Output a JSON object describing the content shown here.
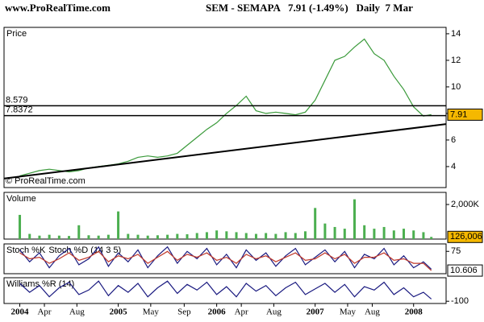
{
  "chart_data": [
    {
      "type": "line",
      "source": "www.ProRealTime.com",
      "title": "SEM - SEMAPA   7.91 (-1.49%)   Daily  7 Mar",
      "panel_title": "Price",
      "watermark": "© ProRealTime.com",
      "x": [
        2004.0,
        2004.1,
        2004.2,
        2004.3,
        2004.4,
        2004.5,
        2004.6,
        2004.7,
        2004.8,
        2004.9,
        2005.0,
        2005.1,
        2005.2,
        2005.3,
        2005.4,
        2005.5,
        2005.6,
        2005.7,
        2005.8,
        2005.9,
        2006.0,
        2006.1,
        2006.2,
        2006.3,
        2006.4,
        2006.5,
        2006.6,
        2006.7,
        2006.8,
        2006.9,
        2007.0,
        2007.1,
        2007.2,
        2007.3,
        2007.4,
        2007.5,
        2007.6,
        2007.7,
        2007.8,
        2007.9,
        2008.0,
        2008.1,
        2008.18
      ],
      "series": [
        {
          "color": "#3a9a3a",
          "values": [
            3.3,
            3.5,
            3.7,
            3.8,
            3.7,
            3.6,
            3.7,
            3.9,
            4.0,
            4.1,
            4.2,
            4.4,
            4.7,
            4.8,
            4.7,
            4.8,
            5.0,
            5.6,
            6.2,
            6.8,
            7.3,
            8.0,
            8.6,
            9.3,
            8.2,
            8.0,
            8.1,
            8.0,
            7.9,
            8.1,
            9.0,
            10.5,
            12.0,
            12.3,
            13.0,
            13.6,
            12.5,
            12.0,
            10.8,
            9.8,
            8.5,
            7.8,
            7.91
          ]
        }
      ],
      "xlim": [
        2003.84,
        2008.33
      ],
      "ylim": [
        2.42,
        14.48
      ],
      "yticks": [
        4,
        6,
        8,
        10,
        12,
        14
      ],
      "hlines": [
        {
          "value": 8.579,
          "label": "8.579"
        },
        {
          "value": 7.8372,
          "label": "7.8372"
        }
      ],
      "trendline": {
        "x": [
          2003.84,
          2008.33
        ],
        "values": [
          3.1,
          7.2
        ]
      },
      "last_value": 7.91,
      "last_color": "#f5b800"
    },
    {
      "type": "bar",
      "panel_title": "Volume",
      "title_color": "#c0392b",
      "x": [
        2004.0,
        2004.1,
        2004.2,
        2004.3,
        2004.4,
        2004.5,
        2004.6,
        2004.7,
        2004.8,
        2004.9,
        2005.0,
        2005.1,
        2005.2,
        2005.3,
        2005.4,
        2005.5,
        2005.6,
        2005.7,
        2005.8,
        2005.9,
        2006.0,
        2006.1,
        2006.2,
        2006.3,
        2006.4,
        2006.5,
        2006.6,
        2006.7,
        2006.8,
        2006.9,
        2007.0,
        2007.1,
        2007.2,
        2007.3,
        2007.4,
        2007.5,
        2007.6,
        2007.7,
        2007.8,
        2007.9,
        2008.0,
        2008.1,
        2008.18
      ],
      "series": [
        {
          "color": "#4caf50",
          "values": [
            1400,
            300,
            200,
            250,
            200,
            180,
            800,
            220,
            200,
            250,
            1600,
            300,
            250,
            200,
            220,
            250,
            300,
            280,
            350,
            400,
            500,
            450,
            400,
            350,
            300,
            350,
            300,
            400,
            350,
            450,
            1800,
            900,
            700,
            600,
            2300,
            800,
            600,
            700,
            500,
            600,
            500,
            400,
            126.006
          ]
        }
      ],
      "xlim": [
        2003.84,
        2008.33
      ],
      "ylim": [
        0,
        2700
      ],
      "yticks": [
        {
          "value": 2000,
          "label": "2,000K"
        }
      ],
      "last_value": {
        "value": 126.006,
        "label": "126,006"
      },
      "last_color": "#f5b800"
    },
    {
      "type": "line",
      "x": [
        2004.0,
        2004.1,
        2004.2,
        2004.3,
        2004.4,
        2004.5,
        2004.6,
        2004.7,
        2004.8,
        2004.9,
        2005.0,
        2005.1,
        2005.2,
        2005.3,
        2005.4,
        2005.5,
        2005.6,
        2005.7,
        2005.8,
        2005.9,
        2006.0,
        2006.1,
        2006.2,
        2006.3,
        2006.4,
        2006.5,
        2006.6,
        2006.7,
        2006.8,
        2006.9,
        2007.0,
        2007.1,
        2007.2,
        2007.3,
        2007.4,
        2007.5,
        2007.6,
        2007.7,
        2007.8,
        2007.9,
        2008.0,
        2008.1,
        2008.18
      ],
      "series": [
        {
          "name": "Stoch %K",
          "color": "#1a1a80",
          "values": [
            80,
            40,
            70,
            20,
            60,
            85,
            30,
            50,
            90,
            25,
            70,
            40,
            80,
            20,
            60,
            90,
            35,
            75,
            50,
            85,
            30,
            65,
            20,
            80,
            45,
            70,
            25,
            60,
            85,
            30,
            55,
            80,
            40,
            75,
            20,
            65,
            50,
            85,
            30,
            60,
            20,
            40,
            15
          ]
        },
        {
          "name": "Stoch %D (14 3 5)",
          "color": "#c0392b",
          "values": [
            70,
            50,
            55,
            35,
            50,
            70,
            45,
            55,
            75,
            40,
            60,
            50,
            65,
            35,
            55,
            75,
            45,
            65,
            55,
            70,
            45,
            55,
            35,
            65,
            50,
            60,
            40,
            55,
            70,
            45,
            50,
            70,
            50,
            65,
            35,
            55,
            55,
            70,
            45,
            50,
            35,
            35,
            10.606
          ]
        }
      ],
      "xlim": [
        2003.84,
        2008.33
      ],
      "ylim": [
        0,
        100
      ],
      "yticks": [
        75
      ],
      "last_value": 10.606
    },
    {
      "type": "line",
      "panel_title": "Williams %R (14)",
      "x": [
        2004.0,
        2004.1,
        2004.2,
        2004.3,
        2004.4,
        2004.5,
        2004.6,
        2004.7,
        2004.8,
        2004.9,
        2005.0,
        2005.1,
        2005.2,
        2005.3,
        2005.4,
        2005.5,
        2005.6,
        2005.7,
        2005.8,
        2005.9,
        2006.0,
        2006.1,
        2006.2,
        2006.3,
        2006.4,
        2006.5,
        2006.6,
        2006.7,
        2006.8,
        2006.9,
        2007.0,
        2007.1,
        2007.2,
        2007.3,
        2007.4,
        2007.5,
        2007.6,
        2007.7,
        2007.8,
        2007.9,
        2008.0,
        2008.1,
        2008.18
      ],
      "series": [
        {
          "color": "#1a1a80",
          "values": [
            -20,
            -60,
            -30,
            -80,
            -40,
            -15,
            -70,
            -50,
            -10,
            -75,
            -30,
            -60,
            -20,
            -80,
            -40,
            -10,
            -65,
            -25,
            -50,
            -15,
            -70,
            -35,
            -80,
            -20,
            -55,
            -30,
            -75,
            -40,
            -15,
            -70,
            -45,
            -20,
            -60,
            -25,
            -80,
            -35,
            -50,
            -15,
            -70,
            -40,
            -80,
            -60,
            -90
          ]
        }
      ],
      "xlim": [
        2003.84,
        2008.33
      ],
      "ylim": [
        -110,
        5
      ],
      "yticks": [
        -100
      ],
      "xticks": [
        2004,
        {
          "value": 2004.25,
          "label": "Apr"
        },
        {
          "value": 2004.58,
          "label": "Aug"
        },
        2005,
        {
          "value": 2005.33,
          "label": "May"
        },
        {
          "value": 2005.67,
          "label": "Sep"
        },
        2006,
        {
          "value": 2006.25,
          "label": "Apr"
        },
        {
          "value": 2006.58,
          "label": "Aug"
        },
        2007,
        {
          "value": 2007.33,
          "label": "May"
        },
        {
          "value": 2007.58,
          "label": "Aug"
        },
        2008
      ]
    }
  ]
}
